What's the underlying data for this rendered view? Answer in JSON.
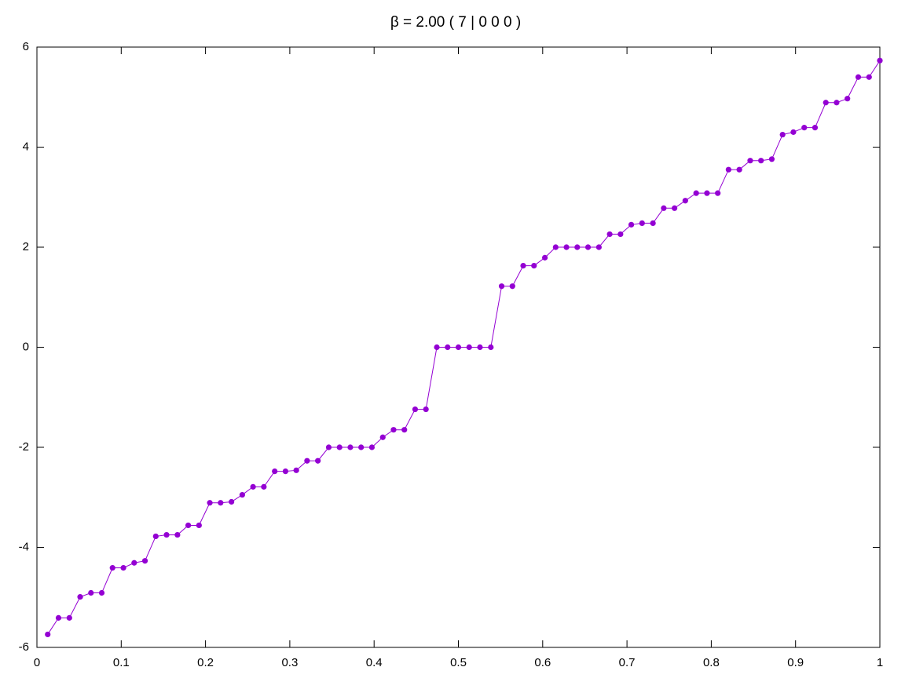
{
  "chart_data": {
    "type": "line",
    "title": "β =  2.00  ( 7 | 0 0 0 )",
    "x": [
      0.0128,
      0.0256,
      0.0385,
      0.0513,
      0.0641,
      0.0769,
      0.0897,
      0.1026,
      0.1154,
      0.1282,
      0.141,
      0.1538,
      0.1667,
      0.1795,
      0.1923,
      0.2051,
      0.2179,
      0.2308,
      0.2436,
      0.2564,
      0.2692,
      0.2821,
      0.2949,
      0.3077,
      0.3205,
      0.3333,
      0.3462,
      0.359,
      0.3718,
      0.3846,
      0.3974,
      0.4103,
      0.4231,
      0.4359,
      0.4487,
      0.4615,
      0.4744,
      0.4872,
      0.5,
      0.5128,
      0.5256,
      0.5385,
      0.5513,
      0.5641,
      0.5769,
      0.5897,
      0.6026,
      0.6154,
      0.6282,
      0.641,
      0.6538,
      0.6667,
      0.6795,
      0.6923,
      0.7051,
      0.7179,
      0.7308,
      0.7436,
      0.7564,
      0.7692,
      0.7821,
      0.7949,
      0.8077,
      0.8205,
      0.8333,
      0.8462,
      0.859,
      0.8718,
      0.8846,
      0.8974,
      0.9103,
      0.9231,
      0.9359,
      0.9487,
      0.9615,
      0.9744,
      0.9872,
      1
    ],
    "values": [
      -5.74,
      -5.41,
      -5.41,
      -4.99,
      -4.91,
      -4.91,
      -4.41,
      -4.41,
      -4.31,
      -4.27,
      -3.78,
      -3.75,
      -3.75,
      -3.56,
      -3.56,
      -3.11,
      -3.11,
      -3.09,
      -2.95,
      -2.79,
      -2.79,
      -2.48,
      -2.48,
      -2.46,
      -2.27,
      -2.27,
      -2.0,
      -2.0,
      -2.0,
      -2.0,
      -2.0,
      -1.8,
      -1.65,
      -1.65,
      -1.24,
      -1.24,
      0,
      0,
      0,
      0,
      0,
      0,
      1.22,
      1.22,
      1.63,
      1.63,
      1.79,
      2.0,
      2.0,
      2.0,
      2.0,
      2.0,
      2.26,
      2.26,
      2.45,
      2.48,
      2.48,
      2.78,
      2.78,
      2.93,
      3.08,
      3.08,
      3.08,
      3.55,
      3.55,
      3.73,
      3.73,
      3.76,
      4.25,
      4.3,
      4.39,
      4.39,
      4.89,
      4.89,
      4.97,
      5.4,
      5.4,
      5.73
    ],
    "color": "#9400d3",
    "xlim": [
      0,
      1
    ],
    "xticks": [
      0,
      0.1,
      0.2,
      0.3,
      0.4,
      0.5,
      0.6,
      0.7,
      0.8,
      0.9,
      1
    ],
    "ylim": [
      -6,
      6
    ],
    "yticks": [
      -6,
      -4,
      -2,
      0,
      2,
      4,
      6
    ]
  }
}
